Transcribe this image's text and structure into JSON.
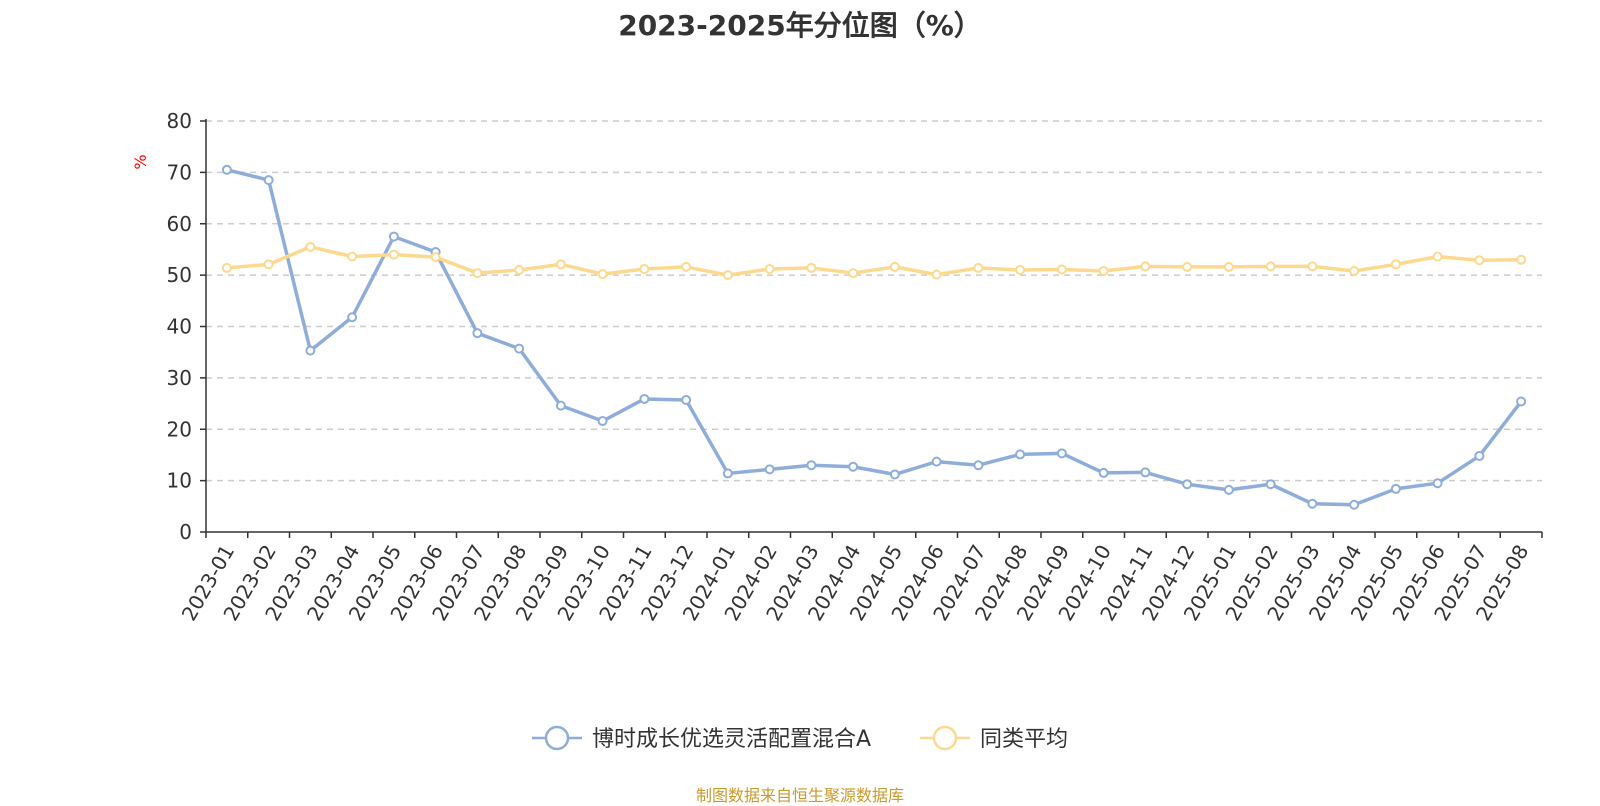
{
  "title": "2023-2025年分位图（%）",
  "source_note": "制图数据来自恒生聚源数据库",
  "colors": {
    "series_fund": "#8fadd9",
    "series_avg": "#fcd98f",
    "unit_label": "#ff0000",
    "grid": "#cccccc",
    "axis": "#333333",
    "source_note": "#c99a2e"
  },
  "chart_data": {
    "type": "line",
    "title": "2023-2025年分位图（%）",
    "ylabel": "%",
    "xlabel": "",
    "ylim": [
      0,
      80
    ],
    "y_ticks": [
      0,
      10,
      20,
      30,
      40,
      50,
      60,
      70,
      80
    ],
    "grid": true,
    "legend_position": "bottom-center",
    "categories": [
      "2023-01",
      "2023-02",
      "2023-03",
      "2023-04",
      "2023-05",
      "2023-06",
      "2023-07",
      "2023-08",
      "2023-09",
      "2023-10",
      "2023-11",
      "2023-12",
      "2024-01",
      "2024-02",
      "2024-03",
      "2024-04",
      "2024-05",
      "2024-06",
      "2024-07",
      "2024-08",
      "2024-09",
      "2024-10",
      "2024-11",
      "2024-12",
      "2025-01",
      "2025-02",
      "2025-03",
      "2025-04",
      "2025-05",
      "2025-06",
      "2025-07",
      "2025-08"
    ],
    "series": [
      {
        "name": "博时成长优选灵活配置混合A",
        "color": "#8fadd9",
        "values": [
          70.5,
          68.5,
          35.3,
          41.8,
          57.5,
          54.5,
          38.7,
          35.7,
          24.6,
          21.6,
          25.9,
          25.7,
          11.4,
          12.2,
          13.0,
          12.7,
          11.2,
          13.7,
          13.0,
          15.1,
          15.3,
          11.5,
          11.6,
          9.3,
          8.2,
          9.3,
          5.5,
          5.3,
          8.4,
          9.5,
          14.8,
          25.4
        ]
      },
      {
        "name": "同类平均",
        "color": "#fcd98f",
        "values": [
          51.4,
          52.1,
          55.5,
          53.6,
          54.0,
          53.5,
          50.4,
          51.0,
          52.1,
          50.2,
          51.2,
          51.6,
          50.0,
          51.2,
          51.4,
          50.4,
          51.6,
          50.1,
          51.4,
          51.0,
          51.1,
          50.8,
          51.7,
          51.6,
          51.6,
          51.7,
          51.7,
          50.8,
          52.1,
          53.6,
          52.9,
          53.0
        ]
      }
    ]
  }
}
